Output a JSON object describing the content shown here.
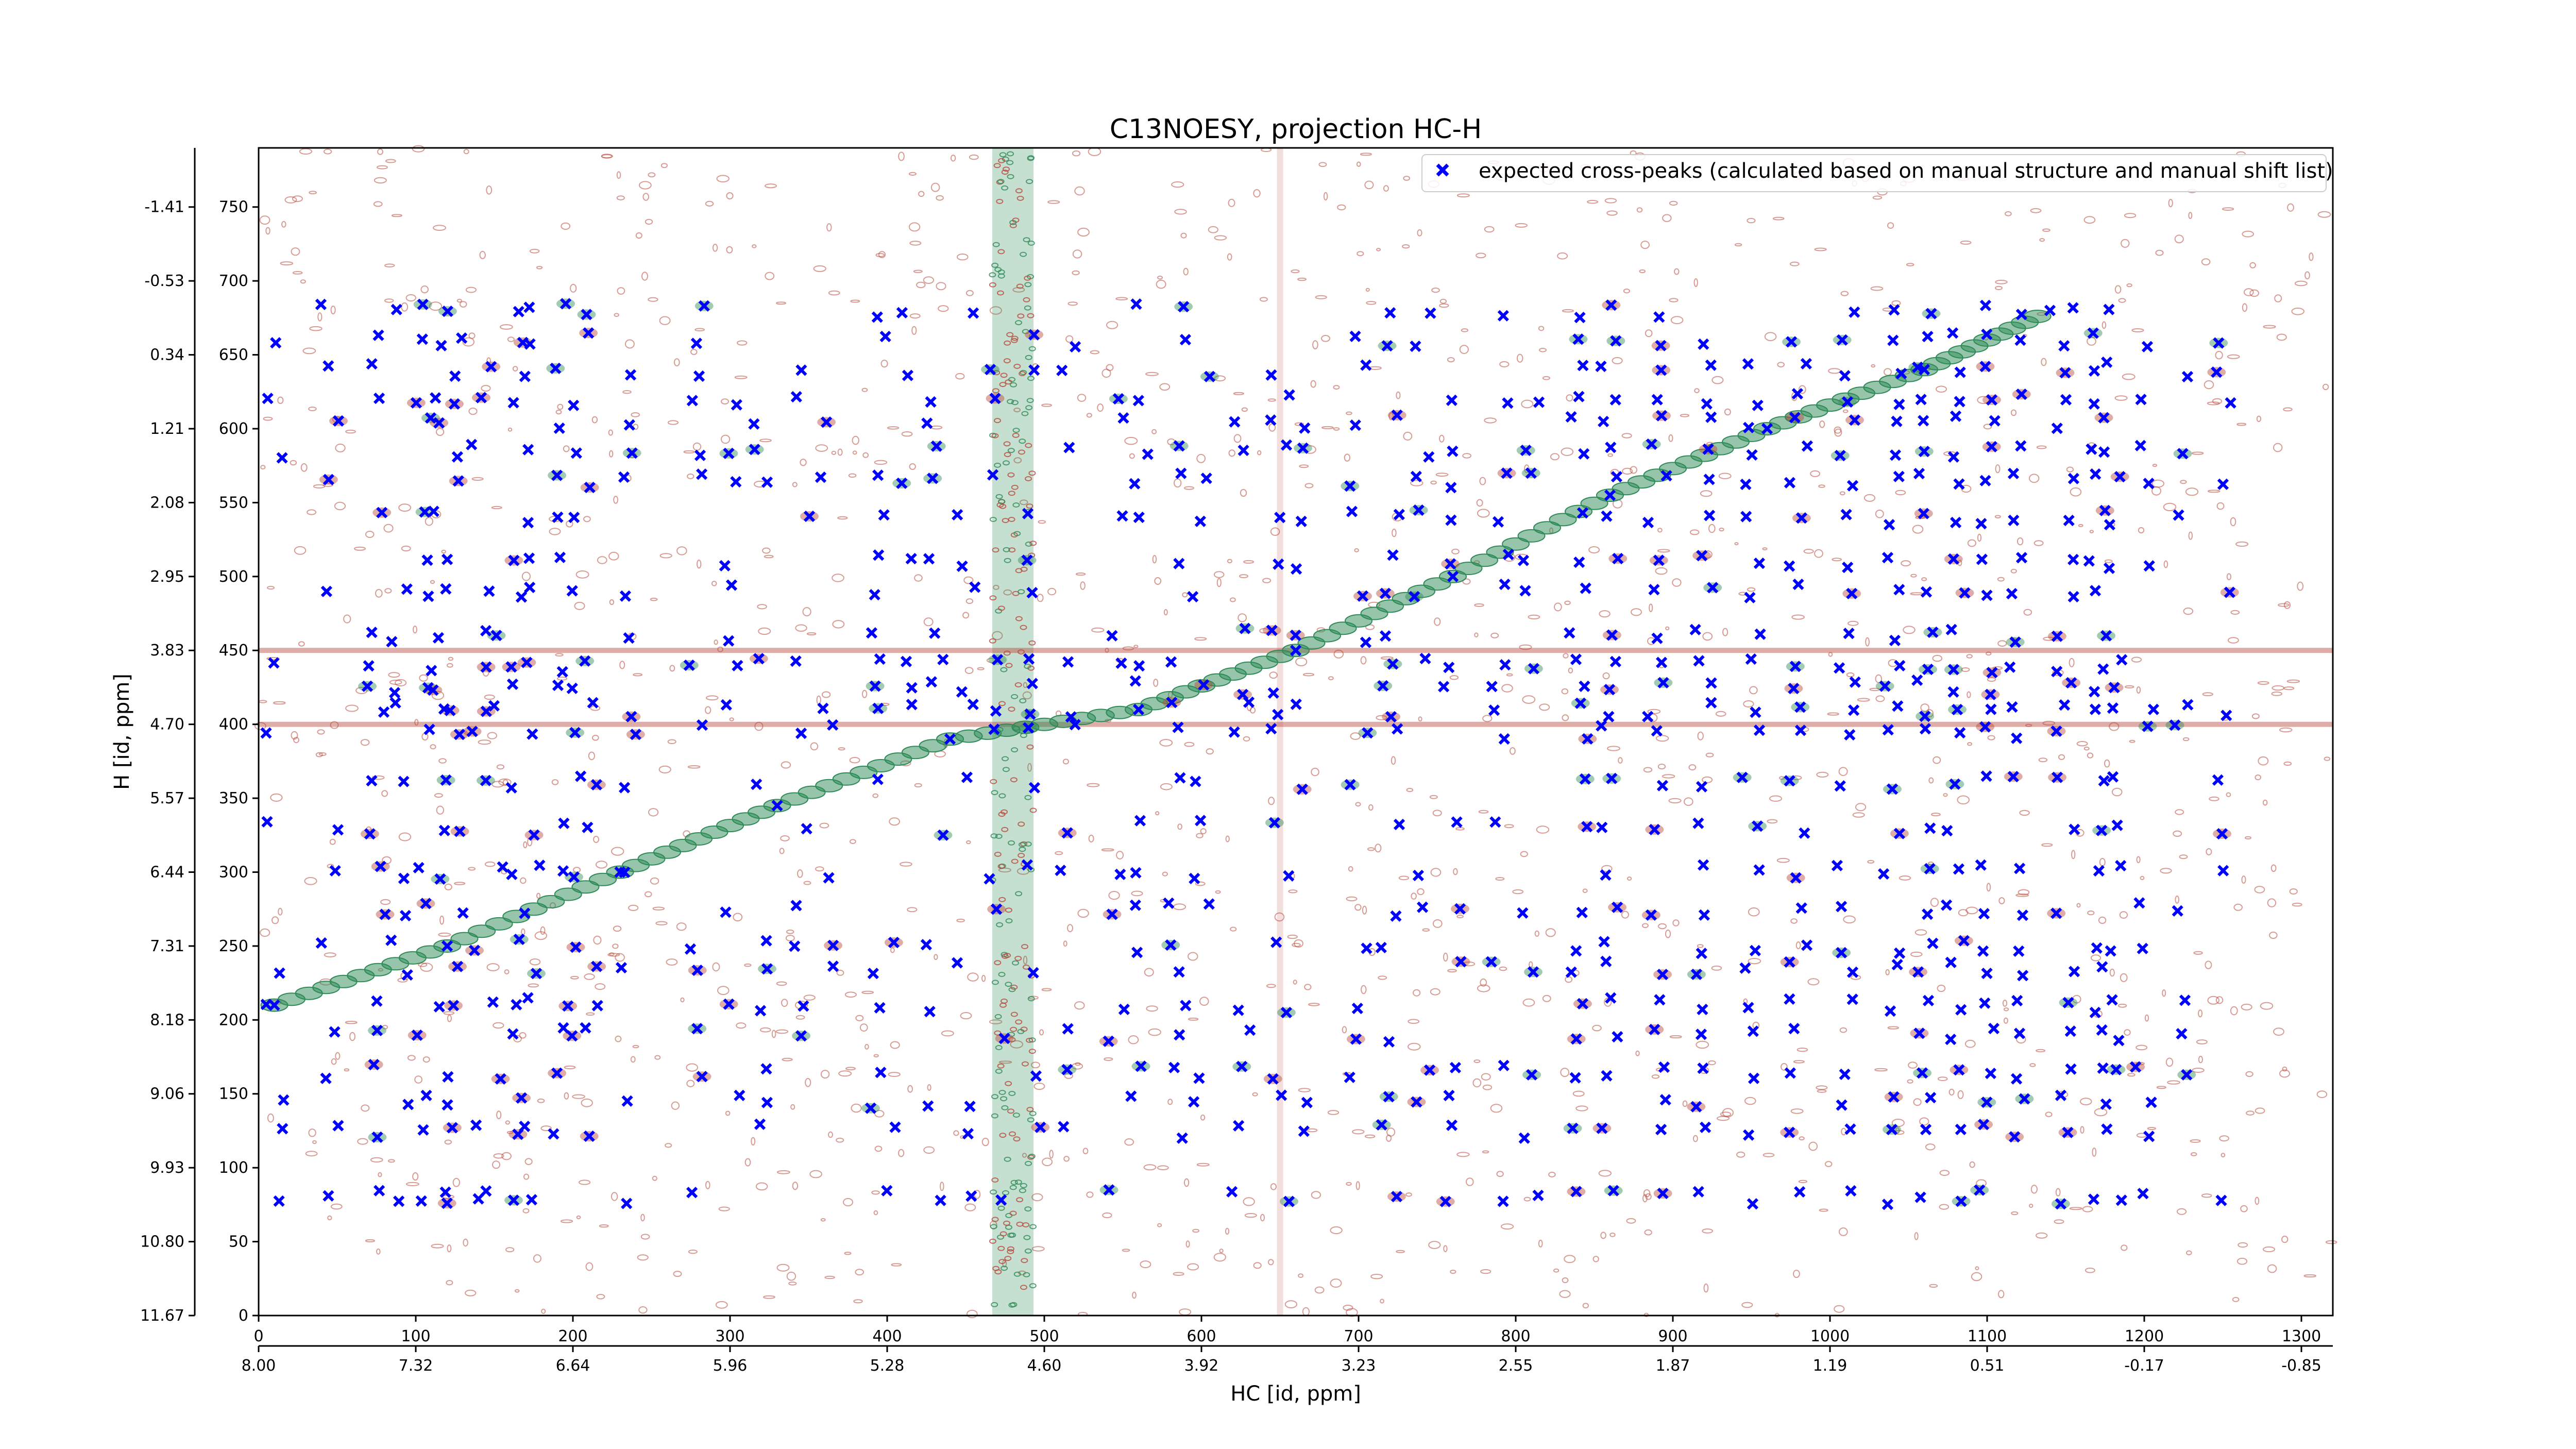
{
  "chart_data": {
    "type": "scatter",
    "title": "C13NOESY, projection HC-H",
    "xlabel": "HC [id, ppm]",
    "ylabel": "H [id, ppm]",
    "x_index_ticks": [
      "0",
      "100",
      "200",
      "300",
      "400",
      "500",
      "600",
      "700",
      "800",
      "900",
      "1000",
      "1100",
      "1200",
      "1300"
    ],
    "x_ppm_ticks": [
      "8.00",
      "7.32",
      "6.64",
      "5.96",
      "5.28",
      "4.60",
      "3.92",
      "3.23",
      "2.55",
      "1.87",
      "1.19",
      "0.51",
      "-0.17",
      "-0.85"
    ],
    "y_index_ticks": [
      "0",
      "50",
      "100",
      "150",
      "200",
      "250",
      "300",
      "350",
      "400",
      "450",
      "500",
      "550",
      "600",
      "650",
      "700",
      "750"
    ],
    "y_ppm_ticks": [
      "11.67",
      "10.80",
      "9.93",
      "9.06",
      "8.18",
      "7.31",
      "6.44",
      "5.57",
      "4.70",
      "3.83",
      "2.95",
      "2.08",
      "1.21",
      "0.34",
      "-0.53",
      "-1.41"
    ],
    "xlim": [
      0,
      1320
    ],
    "ylim": [
      0,
      790
    ],
    "legend_position": "top-right",
    "grid": false,
    "series": [
      {
        "name": "expected cross-peaks (calculated based on manual structure and manual shift list)",
        "color": "#0000ff",
        "marker": "x",
        "column_x": [
          10,
          45,
          75,
          90,
          105,
          115,
          125,
          140,
          150,
          165,
          175,
          190,
          200,
          210,
          235,
          280,
          300,
          320,
          345,
          360,
          395,
          410,
          430,
          450,
          470,
          495,
          515,
          545,
          560,
          585,
          600,
          625,
          650,
          665,
          700,
          720,
          740,
          760,
          790,
          810,
          840,
          860,
          890,
          920,
          950,
          980,
          1010,
          1040,
          1060,
          1080,
          1100,
          1120,
          1150,
          1170,
          1180,
          1200,
          1225,
          1250
        ],
        "row_y": [
          80,
          125,
          145,
          165,
          190,
          210,
          235,
          250,
          275,
          300,
          330,
          360,
          395,
          410,
          425,
          440,
          460,
          490,
          510,
          540,
          565,
          585,
          605,
          620,
          640,
          660,
          680
        ],
        "diagonal": [
          [
            10,
            210
          ],
          [
            120,
            250
          ],
          [
            230,
            300
          ],
          [
            330,
            345
          ],
          [
            440,
            390
          ],
          [
            560,
            410
          ],
          [
            660,
            450
          ],
          [
            760,
            500
          ],
          [
            860,
            555
          ],
          [
            960,
            600
          ],
          [
            1060,
            640
          ],
          [
            1140,
            680
          ]
        ]
      }
    ],
    "contours": {
      "positive_color": "#b84a3c",
      "negative_color": "#2e8b57",
      "vertical_bands": [
        480,
        650
      ],
      "horizontal_bands": [
        450,
        400
      ]
    }
  }
}
